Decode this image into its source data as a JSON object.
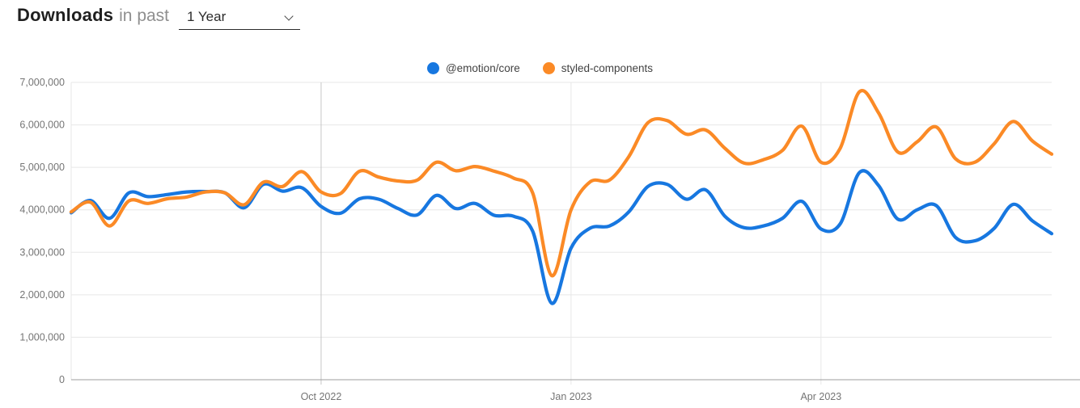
{
  "header": {
    "title": "Downloads",
    "subtitle": "in past",
    "period_value": "1 Year"
  },
  "legend": {
    "items": [
      {
        "label": "@emotion/core",
        "color": "#1777e0"
      },
      {
        "label": "styled-components",
        "color": "#fb8a26"
      }
    ]
  },
  "colors": {
    "series_blue": "#1777e0",
    "series_orange": "#fb8a26",
    "grid": "#e7e7e7",
    "grid_major_vertical": "#c6c6c6",
    "axis_line": "#9e9e9e",
    "tick_text": "#757575",
    "title_text": "#1f1f1f",
    "subtitle_text": "#8f8f8f",
    "legend_text": "#424242"
  },
  "chart_data": {
    "type": "line",
    "title": "Downloads in past 1 Year",
    "xlabel": "",
    "ylabel": "",
    "x_unit": "week",
    "n_points": 52,
    "ylim": [
      0,
      7000000
    ],
    "y_tick_step": 1000000,
    "y_tick_labels": [
      "0",
      "1,000,000",
      "2,000,000",
      "3,000,000",
      "4,000,000",
      "5,000,000",
      "6,000,000",
      "7,000,000"
    ],
    "x_tick_labels": [
      {
        "label": "Oct 2022",
        "week": 13
      },
      {
        "label": "Jan 2023",
        "week": 26
      },
      {
        "label": "Apr 2023",
        "week": 39
      }
    ],
    "grid": true,
    "legend_position": "top-center",
    "series": [
      {
        "name": "@emotion/core",
        "color": "#1777e0",
        "values": [
          3930000,
          4220000,
          3800000,
          4400000,
          4310000,
          4360000,
          4420000,
          4430000,
          4400000,
          4050000,
          4600000,
          4440000,
          4520000,
          4080000,
          3920000,
          4260000,
          4250000,
          4030000,
          3880000,
          4340000,
          4030000,
          4150000,
          3870000,
          3850000,
          3500000,
          1800000,
          3100000,
          3570000,
          3620000,
          3950000,
          4550000,
          4600000,
          4250000,
          4470000,
          3850000,
          3580000,
          3620000,
          3800000,
          4200000,
          3550000,
          3670000,
          4880000,
          4570000,
          3780000,
          4000000,
          4100000,
          3350000,
          3270000,
          3560000,
          4130000,
          3740000,
          3440000
        ]
      },
      {
        "name": "styled-components",
        "color": "#fb8a26",
        "values": [
          3950000,
          4180000,
          3620000,
          4210000,
          4150000,
          4260000,
          4300000,
          4420000,
          4400000,
          4120000,
          4650000,
          4550000,
          4900000,
          4420000,
          4380000,
          4910000,
          4770000,
          4680000,
          4700000,
          5120000,
          4920000,
          5020000,
          4910000,
          4750000,
          4400000,
          2450000,
          4000000,
          4660000,
          4700000,
          5250000,
          6050000,
          6100000,
          5780000,
          5880000,
          5450000,
          5100000,
          5180000,
          5400000,
          5970000,
          5120000,
          5450000,
          6780000,
          6280000,
          5360000,
          5600000,
          5950000,
          5200000,
          5120000,
          5550000,
          6080000,
          5620000,
          5310000
        ]
      }
    ]
  }
}
